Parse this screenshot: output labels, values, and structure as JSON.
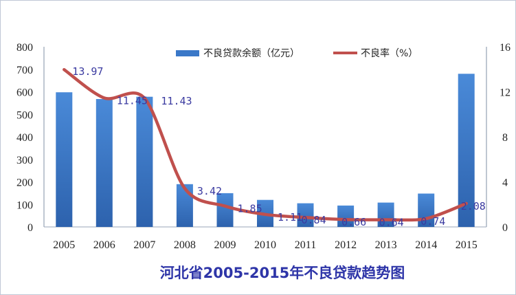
{
  "chart_data": {
    "type": "bar",
    "title": "河北省2005-2015年不良贷款趋势图",
    "categories": [
      "2005",
      "2006",
      "2007",
      "2008",
      "2009",
      "2010",
      "2011",
      "2012",
      "2013",
      "2014",
      "2015"
    ],
    "series": [
      {
        "name": "不良贷款余额（亿元）",
        "type": "bar",
        "axis": "left",
        "color": "#3a78c8",
        "values": [
          598,
          568,
          578,
          190,
          150,
          120,
          105,
          95,
          108,
          148,
          680
        ]
      },
      {
        "name": "不良率（%）",
        "type": "line",
        "axis": "right",
        "color": "#c0504d",
        "values": [
          13.97,
          11.45,
          11.43,
          3.42,
          1.85,
          1.11,
          0.84,
          0.66,
          0.64,
          0.74,
          2.08
        ],
        "labels": [
          "13.97",
          "11.45",
          "11.43",
          "3.42",
          "1.85",
          "1.11",
          "0.84",
          "0.66",
          "0.64",
          "0.74",
          "2.08"
        ]
      }
    ],
    "y_left": {
      "ylim": [
        0,
        800
      ],
      "ticks": [
        "0",
        "100",
        "200",
        "300",
        "400",
        "500",
        "600",
        "700",
        "800"
      ]
    },
    "y_right": {
      "ylim": [
        0,
        16
      ],
      "ticks": [
        "0",
        "4",
        "8",
        "12",
        "16"
      ]
    },
    "legend": {
      "position": "top"
    },
    "grid": false
  }
}
